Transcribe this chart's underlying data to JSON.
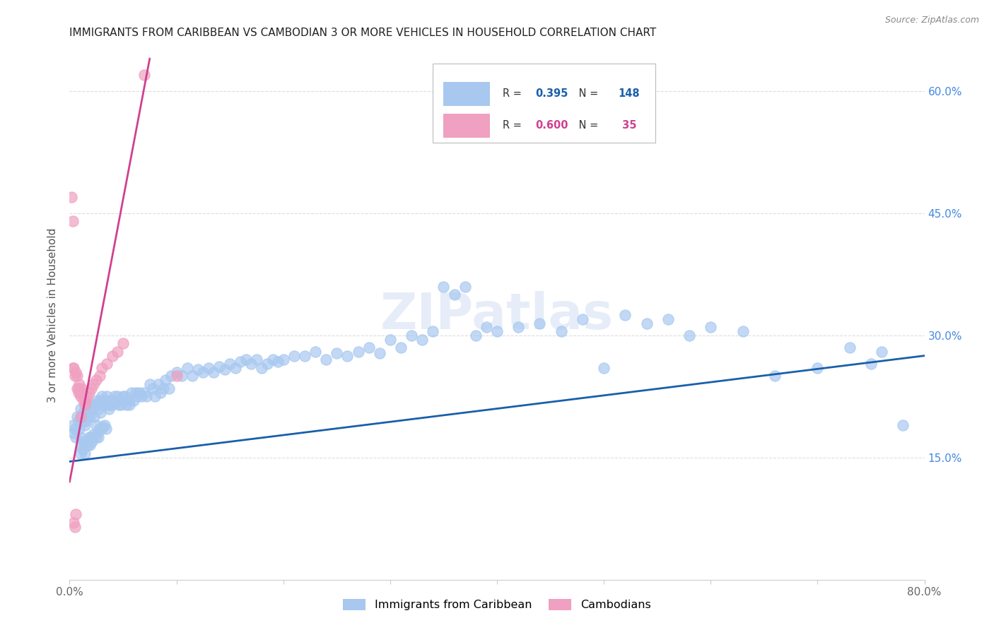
{
  "title": "IMMIGRANTS FROM CARIBBEAN VS CAMBODIAN 3 OR MORE VEHICLES IN HOUSEHOLD CORRELATION CHART",
  "source": "Source: ZipAtlas.com",
  "ylabel": "3 or more Vehicles in Household",
  "blue_R": "0.395",
  "blue_N": "148",
  "pink_R": "0.600",
  "pink_N": "35",
  "blue_color": "#a8c8f0",
  "pink_color": "#f0a0c0",
  "blue_line_color": "#1a5faa",
  "pink_line_color": "#d04090",
  "legend_label_blue": "Immigrants from Caribbean",
  "legend_label_pink": "Cambodians",
  "watermark": "ZIPatlas",
  "blue_scatter_x": [
    0.003,
    0.004,
    0.005,
    0.006,
    0.007,
    0.008,
    0.009,
    0.01,
    0.01,
    0.01,
    0.011,
    0.011,
    0.012,
    0.012,
    0.013,
    0.013,
    0.014,
    0.014,
    0.015,
    0.015,
    0.016,
    0.016,
    0.017,
    0.017,
    0.018,
    0.018,
    0.019,
    0.019,
    0.02,
    0.02,
    0.021,
    0.021,
    0.022,
    0.022,
    0.023,
    0.024,
    0.025,
    0.025,
    0.026,
    0.026,
    0.027,
    0.027,
    0.028,
    0.028,
    0.029,
    0.03,
    0.03,
    0.031,
    0.031,
    0.032,
    0.033,
    0.033,
    0.034,
    0.034,
    0.035,
    0.036,
    0.037,
    0.038,
    0.039,
    0.04,
    0.041,
    0.042,
    0.043,
    0.045,
    0.046,
    0.047,
    0.048,
    0.05,
    0.051,
    0.052,
    0.053,
    0.055,
    0.056,
    0.058,
    0.06,
    0.062,
    0.063,
    0.065,
    0.067,
    0.07,
    0.072,
    0.075,
    0.078,
    0.08,
    0.083,
    0.085,
    0.088,
    0.09,
    0.093,
    0.095,
    0.1,
    0.105,
    0.11,
    0.115,
    0.12,
    0.125,
    0.13,
    0.135,
    0.14,
    0.145,
    0.15,
    0.155,
    0.16,
    0.165,
    0.17,
    0.175,
    0.18,
    0.185,
    0.19,
    0.195,
    0.2,
    0.21,
    0.22,
    0.23,
    0.24,
    0.25,
    0.26,
    0.27,
    0.28,
    0.29,
    0.3,
    0.31,
    0.32,
    0.33,
    0.34,
    0.35,
    0.36,
    0.37,
    0.38,
    0.39,
    0.4,
    0.42,
    0.44,
    0.46,
    0.48,
    0.5,
    0.52,
    0.54,
    0.56,
    0.58,
    0.6,
    0.63,
    0.66,
    0.7,
    0.73,
    0.75,
    0.76,
    0.78
  ],
  "blue_scatter_y": [
    0.19,
    0.18,
    0.185,
    0.175,
    0.2,
    0.195,
    0.185,
    0.21,
    0.175,
    0.155,
    0.2,
    0.165,
    0.195,
    0.16,
    0.205,
    0.17,
    0.19,
    0.155,
    0.195,
    0.168,
    0.215,
    0.17,
    0.2,
    0.165,
    0.21,
    0.175,
    0.2,
    0.165,
    0.215,
    0.175,
    0.21,
    0.17,
    0.215,
    0.178,
    0.2,
    0.215,
    0.19,
    0.175,
    0.22,
    0.18,
    0.21,
    0.175,
    0.22,
    0.185,
    0.205,
    0.225,
    0.185,
    0.22,
    0.188,
    0.215,
    0.22,
    0.19,
    0.215,
    0.185,
    0.225,
    0.215,
    0.21,
    0.215,
    0.22,
    0.215,
    0.22,
    0.225,
    0.218,
    0.225,
    0.215,
    0.22,
    0.215,
    0.225,
    0.22,
    0.225,
    0.215,
    0.22,
    0.215,
    0.23,
    0.22,
    0.23,
    0.225,
    0.23,
    0.225,
    0.23,
    0.225,
    0.24,
    0.235,
    0.225,
    0.24,
    0.23,
    0.235,
    0.245,
    0.235,
    0.25,
    0.255,
    0.25,
    0.26,
    0.25,
    0.258,
    0.255,
    0.26,
    0.255,
    0.262,
    0.258,
    0.265,
    0.26,
    0.268,
    0.27,
    0.265,
    0.27,
    0.26,
    0.265,
    0.27,
    0.268,
    0.27,
    0.275,
    0.275,
    0.28,
    0.27,
    0.278,
    0.275,
    0.28,
    0.285,
    0.278,
    0.295,
    0.285,
    0.3,
    0.295,
    0.305,
    0.36,
    0.35,
    0.36,
    0.3,
    0.31,
    0.305,
    0.31,
    0.315,
    0.305,
    0.32,
    0.26,
    0.325,
    0.315,
    0.32,
    0.3,
    0.31,
    0.305,
    0.25,
    0.26,
    0.285,
    0.265,
    0.28,
    0.19
  ],
  "pink_scatter_x": [
    0.002,
    0.003,
    0.003,
    0.004,
    0.004,
    0.005,
    0.005,
    0.006,
    0.006,
    0.007,
    0.007,
    0.008,
    0.008,
    0.009,
    0.01,
    0.01,
    0.01,
    0.011,
    0.012,
    0.013,
    0.014,
    0.015,
    0.016,
    0.018,
    0.02,
    0.022,
    0.025,
    0.028,
    0.03,
    0.035,
    0.04,
    0.045,
    0.05,
    0.07,
    0.1
  ],
  "pink_scatter_y": [
    0.47,
    0.44,
    0.26,
    0.26,
    0.07,
    0.25,
    0.065,
    0.255,
    0.08,
    0.25,
    0.235,
    0.235,
    0.23,
    0.24,
    0.225,
    0.23,
    0.2,
    0.235,
    0.23,
    0.22,
    0.215,
    0.22,
    0.225,
    0.23,
    0.235,
    0.24,
    0.245,
    0.25,
    0.26,
    0.265,
    0.275,
    0.28,
    0.29,
    0.62,
    0.25
  ],
  "blue_trendline_x": [
    0.0,
    0.8
  ],
  "blue_trendline_y": [
    0.145,
    0.275
  ],
  "pink_trendline_x": [
    0.0,
    0.075
  ],
  "pink_trendline_y": [
    0.12,
    0.64
  ],
  "xlim": [
    0.0,
    0.8
  ],
  "ylim": [
    0.0,
    0.65
  ],
  "ytick_positions": [
    0.0,
    0.15,
    0.3,
    0.45,
    0.6
  ],
  "ytick_labels_right": [
    "",
    "15.0%",
    "30.0%",
    "45.0%",
    "60.0%"
  ],
  "xtick_positions": [
    0.0,
    0.1,
    0.2,
    0.3,
    0.4,
    0.5,
    0.6,
    0.7,
    0.8
  ],
  "xtick_labels": [
    "0.0%",
    "",
    "",
    "",
    "",
    "",
    "",
    "",
    "80.0%"
  ],
  "background_color": "#ffffff",
  "grid_color": "#dddddd",
  "title_color": "#222222",
  "axis_label_color": "#555555",
  "right_axis_color": "#4488dd",
  "figsize": [
    14.06,
    8.92
  ],
  "dpi": 100
}
